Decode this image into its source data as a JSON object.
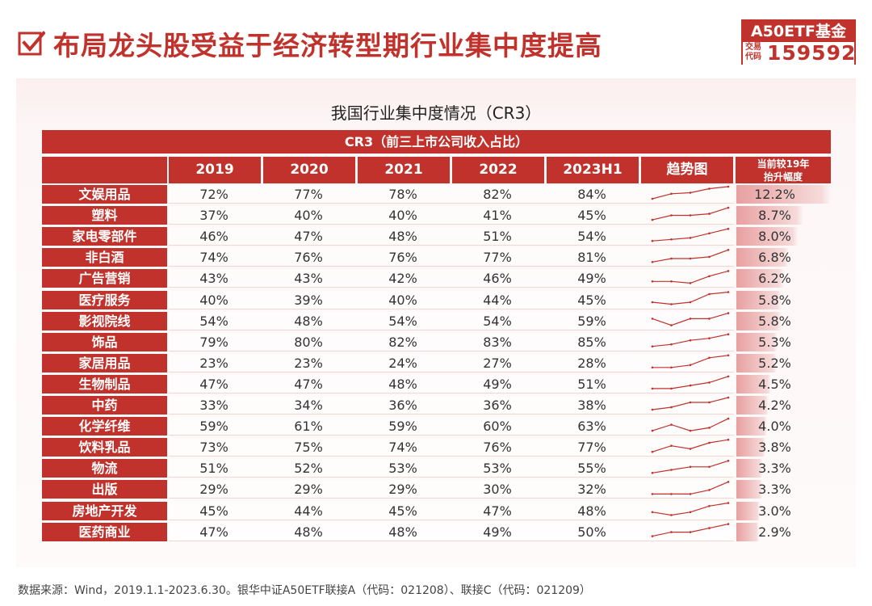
{
  "header": {
    "title": "布局龙头股受益于经济转型期行业集中度提高",
    "badge_title": "A50ETF基金",
    "badge_code_label": "交易代码",
    "badge_code": "159592"
  },
  "table_title": "我国行业集中度情况（CR3）",
  "chart_data": {
    "type": "table",
    "title": "我国行业集中度情况（CR3）",
    "subtitle": "CR3（前三上市公司收入占比）",
    "columns": [
      "2019",
      "2020",
      "2021",
      "2022",
      "2023H1",
      "趋势图",
      "当前较19年抬升幅度"
    ],
    "column_trend": "趋势图",
    "column_lift_line1": "当前较19年",
    "column_lift_line2": "抬升幅度",
    "rows": [
      {
        "label": "文娱用品",
        "values": [
          "72%",
          "77%",
          "78%",
          "82%",
          "84%"
        ],
        "lift": "12.2%",
        "lift_value": 12.2
      },
      {
        "label": "塑料",
        "values": [
          "37%",
          "40%",
          "40%",
          "41%",
          "45%"
        ],
        "lift": "8.7%",
        "lift_value": 8.7
      },
      {
        "label": "家电零部件",
        "values": [
          "46%",
          "47%",
          "48%",
          "51%",
          "54%"
        ],
        "lift": "8.0%",
        "lift_value": 8.0
      },
      {
        "label": "非白酒",
        "values": [
          "74%",
          "76%",
          "76%",
          "77%",
          "81%"
        ],
        "lift": "6.8%",
        "lift_value": 6.8
      },
      {
        "label": "广告营销",
        "values": [
          "43%",
          "43%",
          "42%",
          "46%",
          "49%"
        ],
        "lift": "6.2%",
        "lift_value": 6.2
      },
      {
        "label": "医疗服务",
        "values": [
          "40%",
          "39%",
          "40%",
          "44%",
          "45%"
        ],
        "lift": "5.8%",
        "lift_value": 5.8
      },
      {
        "label": "影视院线",
        "values": [
          "54%",
          "48%",
          "54%",
          "54%",
          "59%"
        ],
        "lift": "5.8%",
        "lift_value": 5.8
      },
      {
        "label": "饰品",
        "values": [
          "79%",
          "80%",
          "82%",
          "83%",
          "85%"
        ],
        "lift": "5.3%",
        "lift_value": 5.3
      },
      {
        "label": "家居用品",
        "values": [
          "23%",
          "23%",
          "24%",
          "27%",
          "28%"
        ],
        "lift": "5.2%",
        "lift_value": 5.2
      },
      {
        "label": "生物制品",
        "values": [
          "47%",
          "47%",
          "48%",
          "49%",
          "51%"
        ],
        "lift": "4.5%",
        "lift_value": 4.5
      },
      {
        "label": "中药",
        "values": [
          "33%",
          "34%",
          "36%",
          "36%",
          "38%"
        ],
        "lift": "4.2%",
        "lift_value": 4.2
      },
      {
        "label": "化学纤维",
        "values": [
          "59%",
          "61%",
          "59%",
          "60%",
          "63%"
        ],
        "lift": "4.0%",
        "lift_value": 4.0
      },
      {
        "label": "饮料乳品",
        "values": [
          "73%",
          "75%",
          "74%",
          "76%",
          "77%"
        ],
        "lift": "3.8%",
        "lift_value": 3.8
      },
      {
        "label": "物流",
        "values": [
          "51%",
          "52%",
          "53%",
          "53%",
          "55%"
        ],
        "lift": "3.3%",
        "lift_value": 3.3
      },
      {
        "label": "出版",
        "values": [
          "29%",
          "29%",
          "29%",
          "30%",
          "32%"
        ],
        "lift": "3.3%",
        "lift_value": 3.3
      },
      {
        "label": "房地产开发",
        "values": [
          "45%",
          "44%",
          "45%",
          "47%",
          "48%"
        ],
        "lift": "3.0%",
        "lift_value": 3.0
      },
      {
        "label": "医药商业",
        "values": [
          "47%",
          "48%",
          "48%",
          "49%",
          "50%"
        ],
        "lift": "2.9%",
        "lift_value": 2.9
      }
    ]
  },
  "footer": "数据来源：Wind，2019.1.1-2023.6.30。银华中证A50ETF联接A（代码：021208）、联接C（代码：021209）",
  "colors": {
    "accent": "#c0322b",
    "bar": "#e8a0a0",
    "spark": "#c0322b"
  }
}
